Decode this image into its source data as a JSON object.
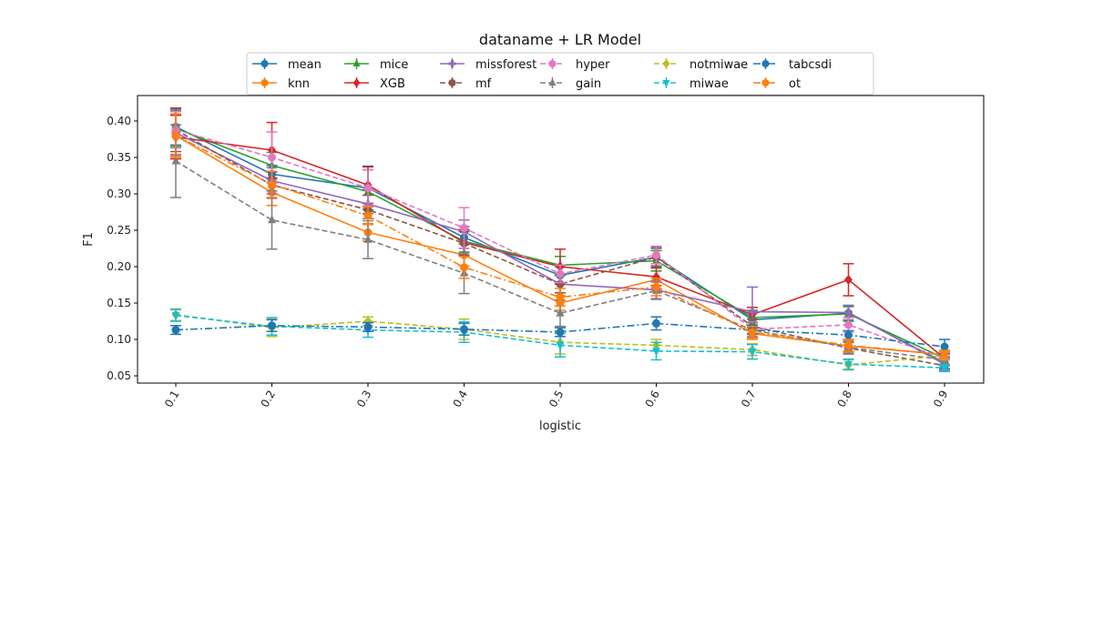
{
  "chart_data": {
    "type": "line",
    "title": "dataname + LR Model",
    "xlabel": "logistic",
    "ylabel": "F1",
    "categories": [
      "0.1",
      "0.2",
      "0.3",
      "0.4",
      "0.5",
      "0.6",
      "0.7",
      "0.8",
      "0.9"
    ],
    "ylim": [
      0.04,
      0.435
    ],
    "yticks": [
      "0.05",
      "0.10",
      "0.15",
      "0.20",
      "0.25",
      "0.30",
      "0.35",
      "0.40"
    ],
    "grid": false,
    "legend_position": "top",
    "series": [
      {
        "name": "mean",
        "color": "#1f77b4",
        "dash": "solid",
        "marker": "circle",
        "values": [
          0.392,
          0.327,
          0.308,
          0.24,
          0.188,
          0.213,
          0.127,
          0.136,
          0.068
        ],
        "errors": [
          0.025,
          0.012,
          0.03,
          0.015,
          0.012,
          0.014,
          0.01,
          0.01,
          0.008
        ]
      },
      {
        "name": "knn",
        "color": "#ff7f0e",
        "dash": "solid",
        "marker": "circle",
        "values": [
          0.38,
          0.302,
          0.247,
          0.216,
          0.15,
          0.182,
          0.108,
          0.091,
          0.079
        ],
        "errors": [
          0.028,
          0.018,
          0.012,
          0.015,
          0.01,
          0.012,
          0.008,
          0.008,
          0.006
        ]
      },
      {
        "name": "mice",
        "color": "#2ca02c",
        "dash": "solid",
        "marker": "triangle",
        "values": [
          0.39,
          0.339,
          0.303,
          0.235,
          0.202,
          0.208,
          0.13,
          0.135,
          0.074
        ],
        "errors": [
          0.025,
          0.018,
          0.03,
          0.015,
          0.012,
          0.014,
          0.01,
          0.01,
          0.008
        ]
      },
      {
        "name": "XGB",
        "color": "#d62728",
        "dash": "solid",
        "marker": "diamond",
        "values": [
          0.378,
          0.36,
          0.312,
          0.233,
          0.2,
          0.186,
          0.134,
          0.182,
          0.074
        ],
        "errors": [
          0.03,
          0.038,
          0.025,
          0.018,
          0.024,
          0.012,
          0.01,
          0.022,
          0.008
        ]
      },
      {
        "name": "missforest",
        "color": "#9467bd",
        "dash": "solid",
        "marker": "plus",
        "values": [
          0.384,
          0.318,
          0.286,
          0.248,
          0.176,
          0.168,
          0.138,
          0.137,
          0.066
        ],
        "errors": [
          0.03,
          0.018,
          0.02,
          0.016,
          0.012,
          0.012,
          0.034,
          0.01,
          0.008
        ]
      },
      {
        "name": "mf",
        "color": "#8c564b",
        "dash": "dashed",
        "marker": "circle",
        "values": [
          0.388,
          0.312,
          0.278,
          0.232,
          0.176,
          0.213,
          0.118,
          0.088,
          0.064
        ],
        "errors": [
          0.03,
          0.018,
          0.02,
          0.016,
          0.012,
          0.012,
          0.01,
          0.008,
          0.008
        ]
      },
      {
        "name": "hyper",
        "color": "#e377c2",
        "dash": "dashed",
        "marker": "circle",
        "values": [
          0.388,
          0.35,
          0.308,
          0.253,
          0.19,
          0.216,
          0.114,
          0.12,
          0.074
        ],
        "errors": [
          0.025,
          0.035,
          0.025,
          0.028,
          0.012,
          0.012,
          0.01,
          0.01,
          0.008
        ]
      },
      {
        "name": "gain",
        "color": "#7f7f7f",
        "dash": "dashed",
        "marker": "triangle",
        "values": [
          0.345,
          0.264,
          0.237,
          0.191,
          0.136,
          0.167,
          0.113,
          0.089,
          0.072
        ],
        "errors": [
          0.05,
          0.04,
          0.026,
          0.028,
          0.018,
          0.012,
          0.01,
          0.008,
          0.008
        ]
      },
      {
        "name": "notmiwae",
        "color": "#bcbd22",
        "dash": "dashed",
        "marker": "diamond",
        "values": [
          0.134,
          0.116,
          0.125,
          0.114,
          0.096,
          0.092,
          0.086,
          0.065,
          0.078
        ],
        "errors": [
          0.008,
          0.012,
          0.006,
          0.014,
          0.016,
          0.008,
          0.008,
          0.007,
          0.006
        ]
      },
      {
        "name": "miwae",
        "color": "#17becf",
        "dash": "dashed",
        "marker": "triangle-down",
        "values": [
          0.133,
          0.118,
          0.113,
          0.11,
          0.092,
          0.084,
          0.083,
          0.066,
          0.061
        ],
        "errors": [
          0.008,
          0.012,
          0.01,
          0.014,
          0.016,
          0.012,
          0.01,
          0.007,
          0.005
        ]
      },
      {
        "name": "tabcsdi",
        "color": "#1f77b4",
        "dash": "dashdot",
        "marker": "circle",
        "values": [
          0.113,
          0.119,
          0.117,
          0.114,
          0.11,
          0.122,
          0.113,
          0.106,
          0.09
        ],
        "errors": [
          0.006,
          0.008,
          0.006,
          0.008,
          0.006,
          0.009,
          0.006,
          0.006,
          0.01
        ]
      },
      {
        "name": "ot",
        "color": "#ff7f0e",
        "dash": "dashdot",
        "marker": "circle",
        "values": [
          0.38,
          0.313,
          0.27,
          0.199,
          0.158,
          0.172,
          0.11,
          0.092,
          0.079
        ],
        "errors": [
          0.03,
          0.018,
          0.012,
          0.015,
          0.012,
          0.012,
          0.008,
          0.008,
          0.006
        ]
      }
    ]
  }
}
